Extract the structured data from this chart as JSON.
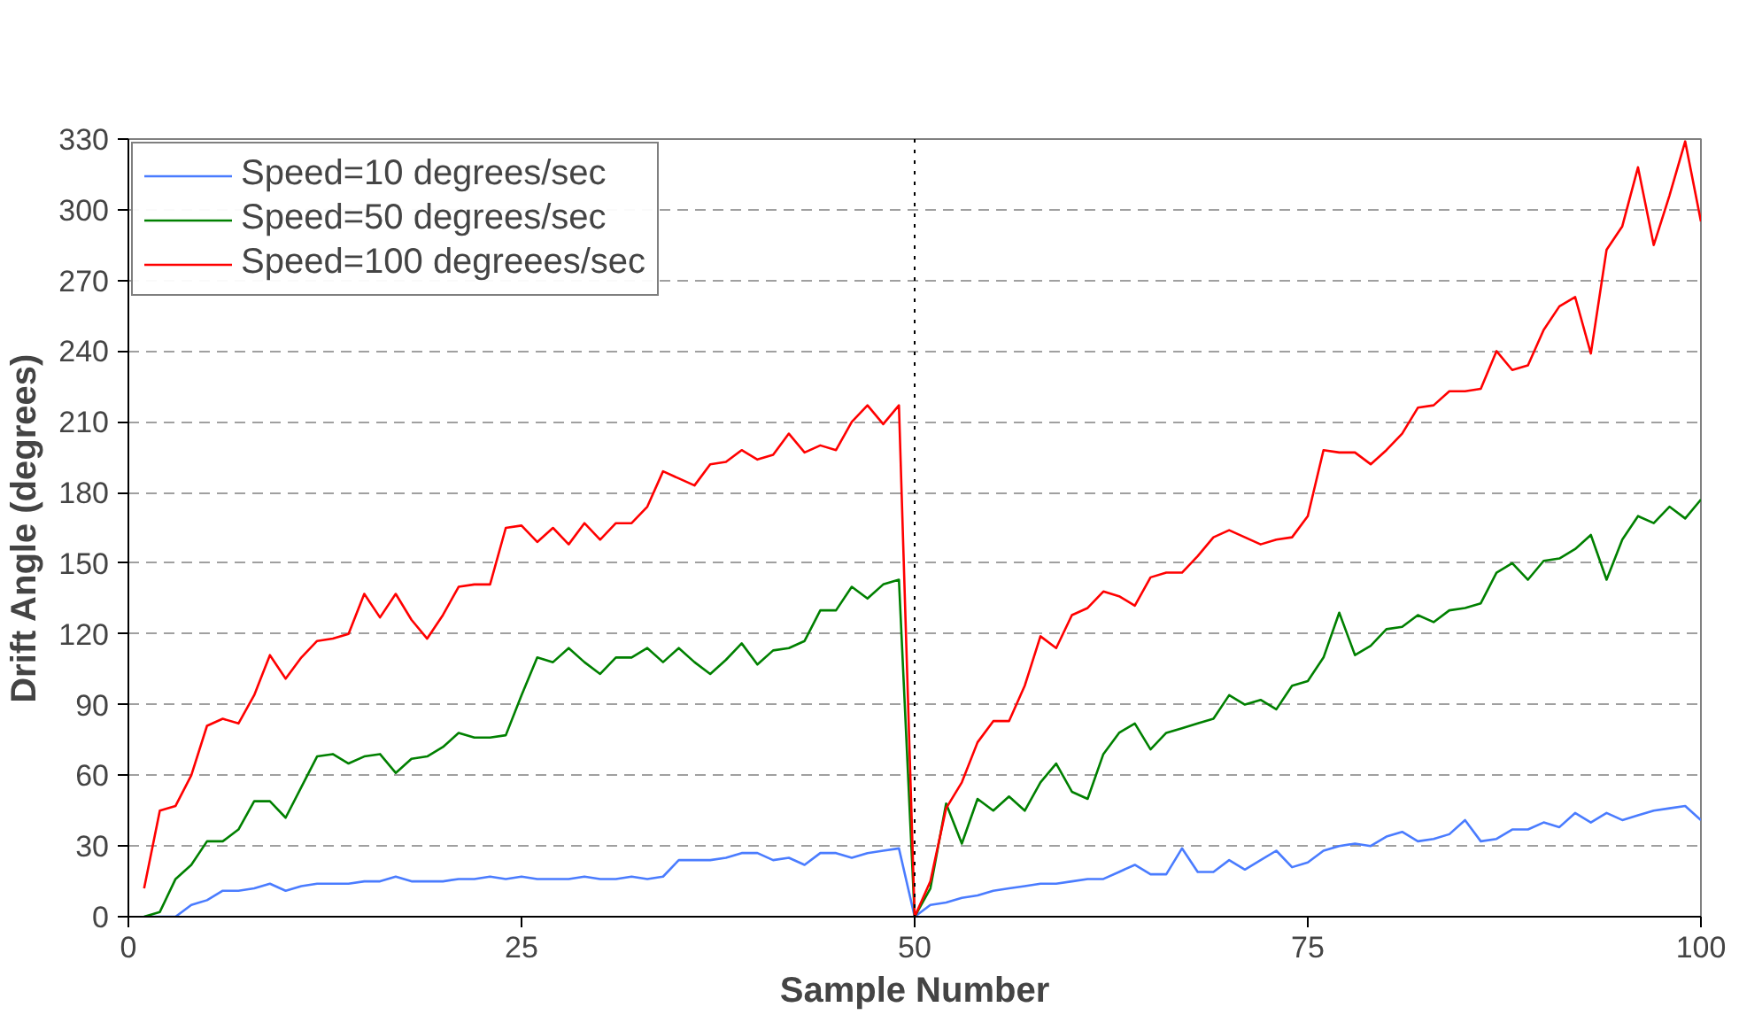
{
  "chart_data": {
    "type": "line",
    "xlabel": "Sample Number",
    "ylabel": "Drift Angle (degrees)",
    "x": [
      1,
      2,
      3,
      4,
      5,
      6,
      7,
      8,
      9,
      10,
      11,
      12,
      13,
      14,
      15,
      16,
      17,
      18,
      19,
      20,
      21,
      22,
      23,
      24,
      25,
      26,
      27,
      28,
      29,
      30,
      31,
      32,
      33,
      34,
      35,
      36,
      37,
      38,
      39,
      40,
      41,
      42,
      43,
      44,
      45,
      46,
      47,
      48,
      49,
      50,
      51,
      52,
      53,
      54,
      55,
      56,
      57,
      58,
      59,
      60,
      61,
      62,
      63,
      64,
      65,
      66,
      67,
      68,
      69,
      70,
      71,
      72,
      73,
      74,
      75,
      76,
      77,
      78,
      79,
      80,
      81,
      82,
      83,
      84,
      85,
      86,
      87,
      88,
      89,
      90,
      91,
      92,
      93,
      94,
      95,
      96,
      97,
      98,
      99,
      100
    ],
    "series": [
      {
        "name": "Speed=10 degrees/sec",
        "color": "#4a7cff",
        "values": [
          0,
          0,
          0,
          5,
          7,
          11,
          11,
          12,
          14,
          11,
          13,
          14,
          14,
          14,
          15,
          15,
          17,
          15,
          15,
          15,
          16,
          16,
          17,
          16,
          17,
          16,
          16,
          16,
          17,
          16,
          16,
          17,
          16,
          17,
          24,
          24,
          24,
          25,
          27,
          27,
          24,
          25,
          22,
          27,
          27,
          25,
          27,
          28,
          29,
          0,
          5,
          6,
          8,
          9,
          11,
          12,
          13,
          14,
          14,
          15,
          16,
          16,
          19,
          22,
          18,
          18,
          29,
          19,
          19,
          24,
          20,
          24,
          28,
          21,
          23,
          28,
          30,
          31,
          30,
          34,
          36,
          32,
          33,
          35,
          41,
          32,
          33,
          37,
          37,
          40,
          38,
          44,
          40,
          44,
          41,
          43,
          45,
          46,
          47,
          41
        ]
      },
      {
        "name": "Speed=50 degrees/sec",
        "color": "#008000",
        "values": [
          0,
          2,
          16,
          22,
          32,
          32,
          37,
          49,
          49,
          42,
          55,
          68,
          69,
          65,
          68,
          69,
          61,
          67,
          68,
          72,
          78,
          76,
          76,
          77,
          94,
          110,
          108,
          114,
          108,
          103,
          110,
          110,
          114,
          108,
          114,
          108,
          103,
          109,
          116,
          107,
          113,
          114,
          117,
          130,
          130,
          140,
          135,
          141,
          143,
          0,
          12,
          48,
          31,
          50,
          45,
          51,
          45,
          57,
          65,
          53,
          50,
          69,
          78,
          82,
          71,
          78,
          80,
          82,
          84,
          94,
          90,
          92,
          88,
          98,
          100,
          110,
          129,
          111,
          115,
          122,
          123,
          128,
          125,
          130,
          131,
          133,
          146,
          150,
          143,
          151,
          152,
          156,
          162,
          143,
          160,
          170,
          167,
          174,
          169,
          177
        ]
      },
      {
        "name": "Speed=100 degreees/sec",
        "color": "#ff0000",
        "values": [
          12,
          45,
          47,
          60,
          81,
          84,
          82,
          94,
          111,
          101,
          110,
          117,
          118,
          120,
          137,
          127,
          137,
          126,
          118,
          128,
          140,
          141,
          141,
          165,
          166,
          159,
          165,
          158,
          167,
          160,
          167,
          167,
          174,
          189,
          186,
          183,
          192,
          193,
          198,
          194,
          196,
          205,
          197,
          200,
          198,
          210,
          217,
          209,
          217,
          0,
          15,
          46,
          57,
          74,
          83,
          83,
          98,
          119,
          114,
          128,
          131,
          138,
          136,
          132,
          144,
          146,
          146,
          153,
          161,
          164,
          161,
          158,
          160,
          161,
          170,
          198,
          197,
          197,
          192,
          198,
          205,
          216,
          217,
          223,
          223,
          224,
          240,
          232,
          234,
          249,
          259,
          263,
          239,
          283,
          293,
          318,
          285,
          306,
          329,
          295
        ]
      }
    ],
    "xlim": [
      0,
      100
    ],
    "xticks": [
      0,
      25,
      50,
      75,
      100
    ],
    "ylim": [
      0,
      330
    ],
    "yticks": [
      0,
      30,
      60,
      90,
      120,
      150,
      180,
      210,
      240,
      270,
      300,
      330
    ],
    "grid": "y",
    "legend": "top left",
    "marker": "none",
    "line_style": "solid",
    "ref_lines": [
      {
        "axis": "x",
        "value": 50,
        "color": "#000000",
        "line_style": "dotted"
      }
    ]
  }
}
